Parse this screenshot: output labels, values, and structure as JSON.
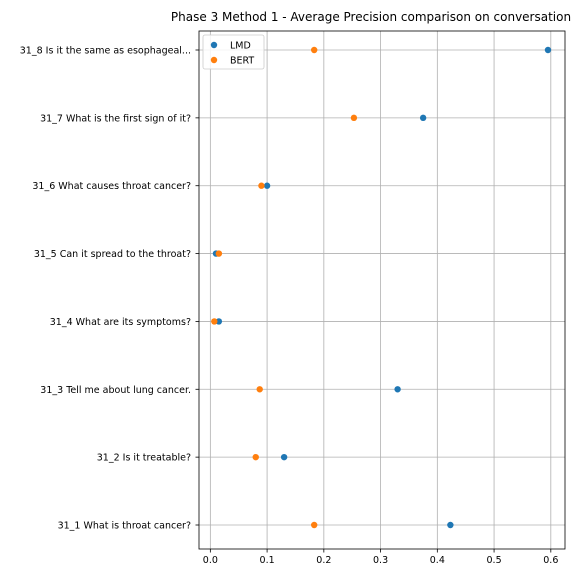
{
  "chart_data": {
    "type": "scatter",
    "title": "Phase 3 Method 1 - Average Precision comparison on conversation",
    "xlabel": "",
    "ylabel": "",
    "categories": [
      "31_1 What is throat cancer?",
      "31_2 Is it treatable?",
      "31_3 Tell me about lung cancer.",
      "31_4 What are its symptoms?",
      "31_5 Can it spread to the throat?",
      "31_6 What causes throat cancer?",
      "31_7 What is the first sign of it?",
      "31_8 Is it the same as esophageal..."
    ],
    "xlim": [
      -0.02,
      0.625
    ],
    "xticks": [
      0.0,
      0.1,
      0.2,
      0.3,
      0.4,
      0.5,
      0.6
    ],
    "xtick_labels": [
      "0.0",
      "0.1",
      "0.2",
      "0.3",
      "0.4",
      "0.5",
      "0.6"
    ],
    "grid": true,
    "legend_position": "top-left",
    "series": [
      {
        "name": "LMD",
        "color": "#1f77b4",
        "values": [
          0.423,
          0.13,
          0.33,
          0.015,
          0.01,
          0.1,
          0.375,
          0.595
        ]
      },
      {
        "name": "BERT",
        "color": "#ff7f0e",
        "values": [
          0.183,
          0.08,
          0.087,
          0.007,
          0.015,
          0.09,
          0.253,
          0.183
        ]
      }
    ]
  }
}
